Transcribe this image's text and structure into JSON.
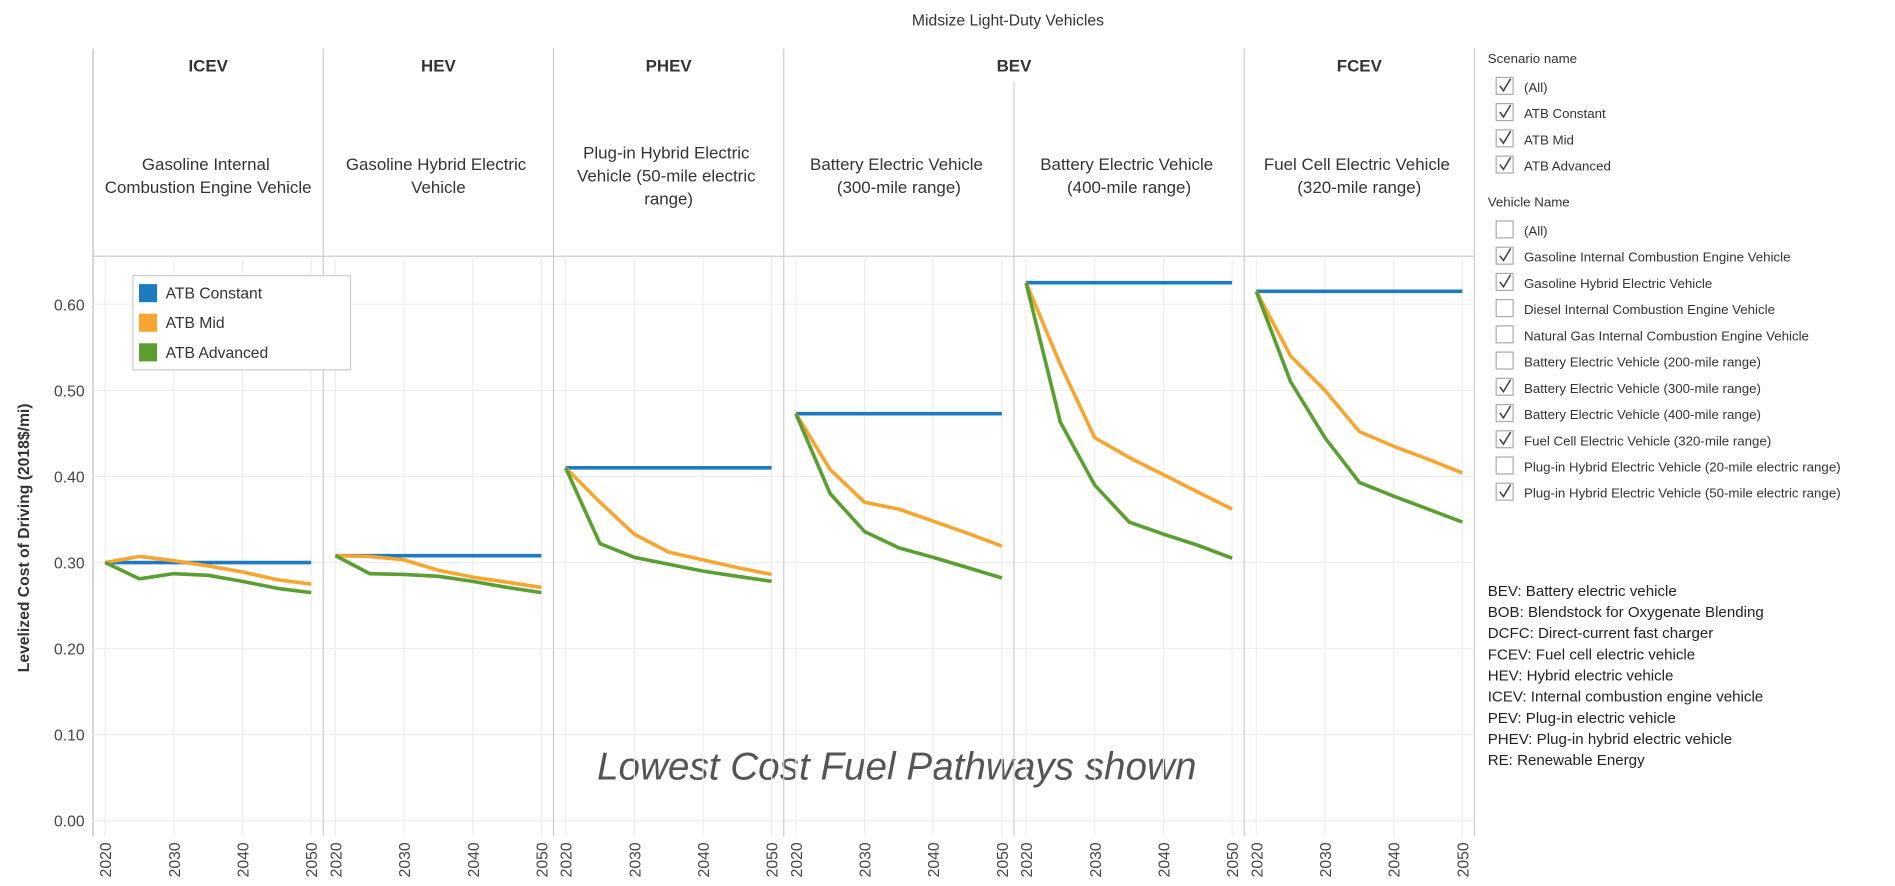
{
  "chart_data": {
    "type": "line",
    "title": "Midsize Light-Duty Vehicles",
    "y_label": "Levelized Cost of Driving (2018$/mi)",
    "annotation": "Lowest Cost Fuel Pathways shown",
    "groups": [
      {
        "label": "ICEV",
        "panels": [
          "Gasoline Internal Combustion Engine Vehicle"
        ]
      },
      {
        "label": "HEV",
        "panels": [
          "Gasoline Hybrid Electric Vehicle"
        ]
      },
      {
        "label": "PHEV",
        "panels": [
          "Plug-in Hybrid Electric Vehicle (50-mile electric range)"
        ]
      },
      {
        "label": "BEV",
        "panels": [
          "Battery Electric Vehicle (300-mile range)",
          "Battery Electric Vehicle (400-mile range)"
        ]
      },
      {
        "label": "FCEV",
        "panels": [
          "Fuel Cell Electric Vehicle (320-mile range)"
        ]
      }
    ],
    "x": [
      2020,
      2025,
      2030,
      2035,
      2040,
      2045,
      2050
    ],
    "xlim": [
      2020,
      2050
    ],
    "xticks": [
      2020,
      2030,
      2040,
      2050
    ],
    "ylim": [
      0,
      0.66
    ],
    "yticks": [
      {
        "value": 0,
        "label": "0.00"
      },
      {
        "value": 0.1,
        "label": "0.10"
      },
      {
        "value": 0.2,
        "label": "0.20"
      },
      {
        "value": 0.3,
        "label": "0.30"
      },
      {
        "value": 0.4,
        "label": "0.40"
      },
      {
        "value": 0.5,
        "label": "0.50"
      },
      {
        "value": 0.6,
        "label": "0.60"
      }
    ],
    "grid": true,
    "legend": "top-left",
    "series": [
      {
        "name": "ATB Constant",
        "color": "#1f7bc1",
        "values": [
          [
            0.3,
            0.3,
            0.3,
            0.3,
            0.3,
            0.3,
            0.3
          ],
          [
            0.308,
            0.308,
            0.308,
            0.308,
            0.308,
            0.308,
            0.308
          ],
          [
            0.41,
            0.41,
            0.41,
            0.41,
            0.41,
            0.41,
            0.41
          ],
          [
            0.473,
            0.473,
            0.473,
            0.473,
            0.473,
            0.473,
            0.473
          ],
          [
            0.625,
            0.625,
            0.625,
            0.625,
            0.625,
            0.625,
            0.625
          ],
          [
            0.615,
            0.615,
            0.615,
            0.615,
            0.615,
            0.615,
            0.615
          ]
        ]
      },
      {
        "name": "ATB Mid",
        "color": "#f7a531",
        "values": [
          [
            0.3,
            0.307,
            0.302,
            0.296,
            0.289,
            0.28,
            0.275
          ],
          [
            0.308,
            0.307,
            0.303,
            0.291,
            0.283,
            0.277,
            0.271
          ],
          [
            0.41,
            0.37,
            0.333,
            0.312,
            0.303,
            0.294,
            0.286
          ],
          [
            0.473,
            0.408,
            0.37,
            0.362,
            0.348,
            0.334,
            0.319
          ],
          [
            0.625,
            0.53,
            0.445,
            0.422,
            0.402,
            0.382,
            0.362
          ],
          [
            0.615,
            0.54,
            0.5,
            0.452,
            0.435,
            0.42,
            0.404
          ]
        ]
      },
      {
        "name": "ATB Advanced",
        "color": "#5b9e32",
        "values": [
          [
            0.3,
            0.281,
            0.287,
            0.285,
            0.278,
            0.27,
            0.265
          ],
          [
            0.308,
            0.287,
            0.286,
            0.284,
            0.278,
            0.271,
            0.265
          ],
          [
            0.41,
            0.322,
            0.306,
            0.298,
            0.29,
            0.284,
            0.278
          ],
          [
            0.473,
            0.38,
            0.336,
            0.317,
            0.306,
            0.294,
            0.282
          ],
          [
            0.625,
            0.463,
            0.39,
            0.347,
            0.333,
            0.32,
            0.305
          ],
          [
            0.615,
            0.51,
            0.445,
            0.393,
            0.377,
            0.362,
            0.347
          ]
        ]
      }
    ]
  },
  "filters": [
    {
      "title": "Scenario name",
      "items": [
        {
          "label": "(All)",
          "checked": true
        },
        {
          "label": "ATB Constant",
          "checked": true
        },
        {
          "label": "ATB Mid",
          "checked": true
        },
        {
          "label": "ATB Advanced",
          "checked": true
        }
      ]
    },
    {
      "title": "Vehicle Name",
      "items": [
        {
          "label": "(All)",
          "checked": false
        },
        {
          "label": "Gasoline Internal Combustion Engine Vehicle",
          "checked": true
        },
        {
          "label": "Gasoline Hybrid Electric Vehicle",
          "checked": true
        },
        {
          "label": "Diesel Internal Combustion Engine Vehicle",
          "checked": false
        },
        {
          "label": "Natural Gas Internal Combustion Engine Vehicle",
          "checked": false
        },
        {
          "label": "Battery Electric Vehicle (200-mile range)",
          "checked": false
        },
        {
          "label": "Battery Electric Vehicle (300-mile range)",
          "checked": true
        },
        {
          "label": "Battery Electric Vehicle (400-mile range)",
          "checked": true
        },
        {
          "label": "Fuel Cell Electric Vehicle (320-mile range)",
          "checked": true
        },
        {
          "label": "Plug-in Hybrid Electric Vehicle (20-mile electric range)",
          "checked": false
        },
        {
          "label": "Plug-in Hybrid Electric Vehicle (50-mile electric range)",
          "checked": true
        }
      ]
    }
  ],
  "glossary": [
    "BEV: Battery electric vehicle",
    "BOB: Blendstock for Oxygenate Blending",
    "DCFC: Direct-current fast charger",
    "FCEV: Fuel cell electric vehicle",
    "HEV: Hybrid electric vehicle",
    "ICEV: Internal combustion engine vehicle",
    "PEV: Plug-in electric vehicle",
    "PHEV: Plug-in hybrid electric vehicle",
    "RE: Renewable Energy"
  ]
}
